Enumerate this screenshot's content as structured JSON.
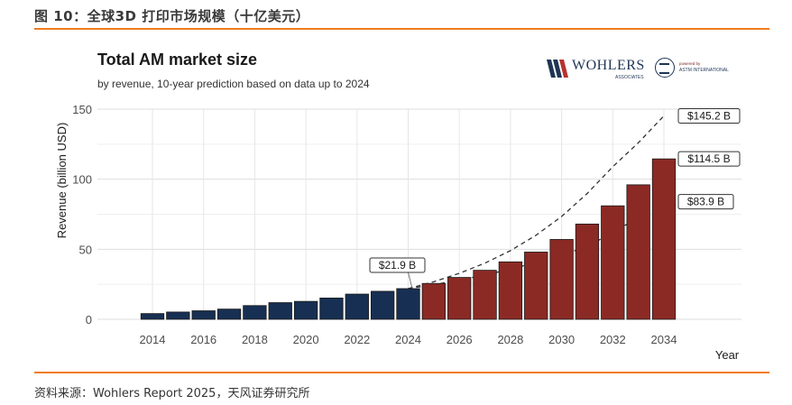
{
  "figure": {
    "title": "图 10：全球3D 打印市场规模（十亿美元）",
    "source": "资料来源：Wohlers Report 2025，天风证券研究所"
  },
  "logos": {
    "wohlers_text": "WOHLERS",
    "wohlers_sub": "ASSOCIATES",
    "astm_powered": "powered by",
    "astm_text": "ASTM INTERNATIONAL"
  },
  "colors": {
    "historical": "#172f52",
    "forecast": "#8b2a25",
    "accent_rule": "#f07c1e"
  },
  "chart_data": {
    "type": "bar",
    "title": "Total AM market size",
    "subtitle": "by revenue, 10-year prediction based on data up to 2024",
    "xlabel": "Year",
    "ylabel": "Revenue (billion USD)",
    "ylim": [
      0,
      150
    ],
    "yticks": [
      0,
      50,
      100,
      150
    ],
    "xticks": [
      2014,
      2016,
      2018,
      2020,
      2022,
      2024,
      2026,
      2028,
      2030,
      2032,
      2034
    ],
    "grid": true,
    "series": [
      {
        "name": "historical",
        "x": [
          2014,
          2015,
          2016,
          2017,
          2018,
          2019,
          2020,
          2021,
          2022,
          2023,
          2024
        ],
        "values": [
          4.1,
          5.2,
          6.1,
          7.3,
          9.8,
          11.9,
          12.8,
          15.2,
          18.0,
          20.0,
          21.9
        ]
      },
      {
        "name": "forecast",
        "x": [
          2025,
          2026,
          2027,
          2028,
          2029,
          2030,
          2031,
          2032,
          2033,
          2034
        ],
        "values": [
          25.6,
          29.9,
          35.0,
          41.0,
          48.0,
          57.0,
          68.0,
          81.0,
          96.0,
          114.5
        ]
      }
    ],
    "scenario_lines": [
      {
        "name": "high",
        "x": [
          2024,
          2025,
          2026,
          2027,
          2028,
          2029,
          2030,
          2031,
          2032,
          2033,
          2034
        ],
        "values": [
          21.9,
          26.8,
          32.8,
          40.1,
          49.0,
          60.0,
          73.4,
          89.8,
          108.9,
          126.0,
          145.2
        ]
      },
      {
        "name": "low",
        "x": [
          2024,
          2025,
          2026,
          2027,
          2028,
          2029,
          2030,
          2031,
          2032,
          2033,
          2034
        ],
        "values": [
          21.9,
          24.7,
          28.0,
          31.6,
          35.8,
          40.5,
          45.8,
          51.9,
          62.0,
          72.5,
          83.9
        ]
      }
    ],
    "annotations": [
      {
        "text": "$21.9 B",
        "x": 2024,
        "y": 21.9
      },
      {
        "text": "$145.2 B",
        "x": 2034,
        "y": 145.2
      },
      {
        "text": "$114.5 B",
        "x": 2034,
        "y": 114.5
      },
      {
        "text": "$83.9 B",
        "x": 2034,
        "y": 83.9
      }
    ]
  }
}
